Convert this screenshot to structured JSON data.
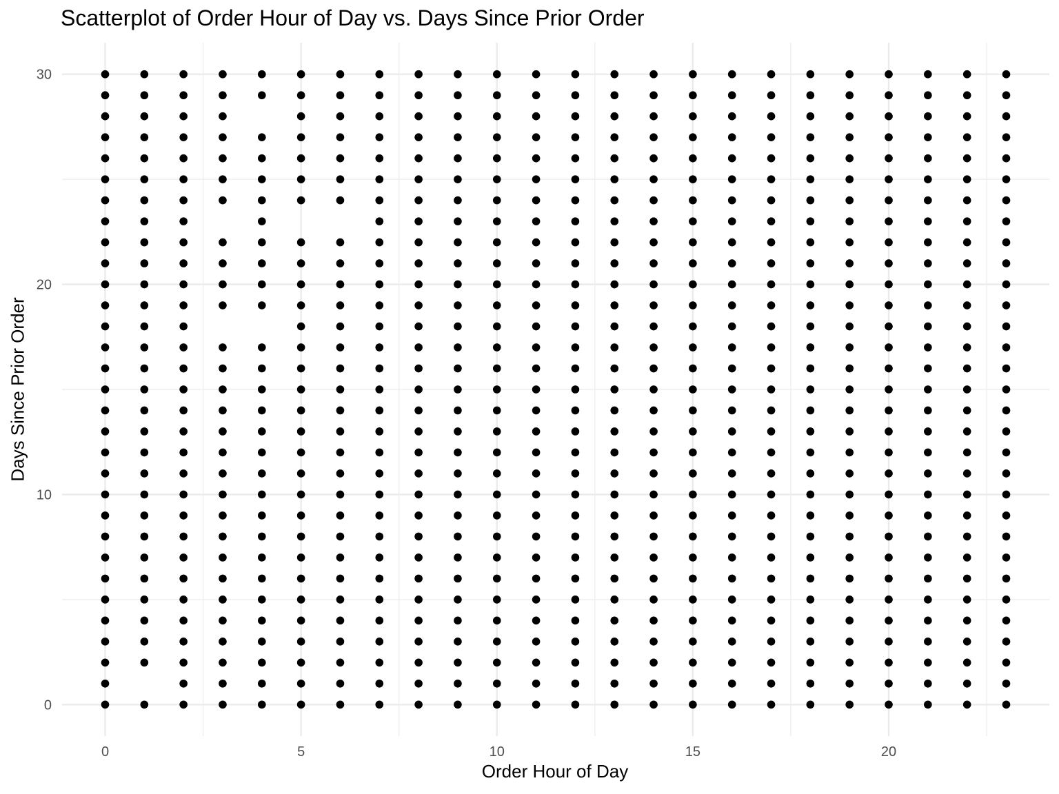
{
  "chart_data": {
    "type": "scatter",
    "title": "Scatterplot of Order Hour of Day vs. Days Since Prior Order",
    "xlabel": "Order Hour of Day",
    "ylabel": "Days Since Prior Order",
    "xlim": [
      -1.1,
      24.1
    ],
    "ylim": [
      -1.5,
      31.5
    ],
    "x_ticks": [
      0,
      5,
      10,
      15,
      20
    ],
    "y_ticks": [
      0,
      10,
      20,
      30
    ],
    "x_minor_gridlines": [
      2.5,
      7.5,
      12.5,
      17.5,
      22.5
    ],
    "y_minor_gridlines": [
      5,
      15,
      25
    ],
    "grid": true,
    "point_color": "#000000",
    "gridline_color": "#ebebeb",
    "series": [
      {
        "x": [
          0,
          1,
          2,
          3,
          4,
          5,
          6,
          7,
          8,
          9,
          10,
          11,
          12,
          13,
          14,
          15,
          16,
          17,
          18,
          19,
          20,
          21,
          22,
          23
        ],
        "y_range": [
          0,
          30
        ],
        "missing_points": [
          {
            "x": 1,
            "y": 0.5
          },
          {
            "x": 3,
            "y": 23
          },
          {
            "x": 3,
            "y": 18
          },
          {
            "x": 4,
            "y": 28
          },
          {
            "x": 4,
            "y": 18
          },
          {
            "x": 5,
            "y": 23
          },
          {
            "x": 6,
            "y": 22.5
          }
        ]
      }
    ]
  }
}
